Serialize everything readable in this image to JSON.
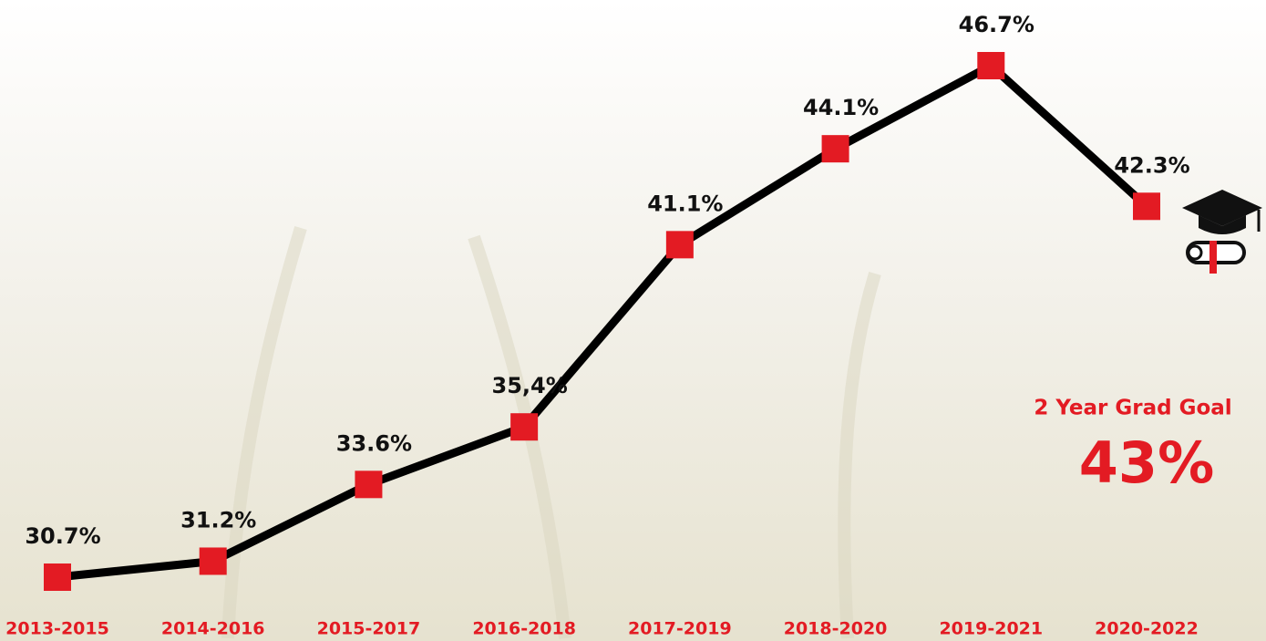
{
  "chart_data": {
    "type": "line",
    "categories": [
      "2013-2015",
      "2014-2016",
      "2015-2017",
      "2016-2018",
      "2017-2019",
      "2018-2020",
      "2019-2021",
      "2020-2022"
    ],
    "series": [
      {
        "name": null,
        "color": "#e31b23",
        "values": [
          30.7,
          31.2,
          33.6,
          35.4,
          41.1,
          44.1,
          46.7,
          42.3
        ],
        "value_labels": [
          "30.7%",
          "31.2%",
          "33.6%",
          "35,4%",
          "41.1%",
          "44.1%",
          "46.7%",
          "42.3%"
        ]
      }
    ],
    "line_color": "#000000",
    "annotations": [
      "2 Year Grad Goal",
      "43%"
    ]
  }
}
